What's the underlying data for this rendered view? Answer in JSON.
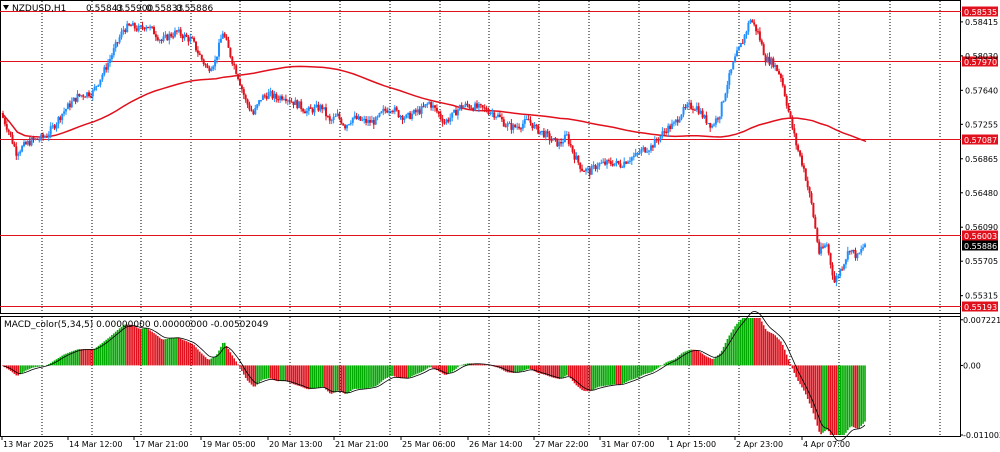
{
  "chart_data": [
    {
      "type": "candlestick",
      "title": "NZDUSD,H1",
      "ohlc_header": {
        "open": "0.55843",
        "high": "0.55900",
        "low": "0.55833",
        "close": "0.55886"
      },
      "ylim": [
        0.5513,
        0.5864
      ],
      "y_ticks": [
        "0.58415",
        "0.58030",
        "0.57640",
        "0.57255",
        "0.56865",
        "0.56480",
        "0.56090",
        "0.55705",
        "0.55315"
      ],
      "x_ticks": [
        "13 Mar 2025",
        "14 Mar 12:00",
        "17 Mar 21:00",
        "19 Mar 05:00",
        "20 Mar 13:00",
        "21 Mar 21:00",
        "25 Mar 06:00",
        "26 Mar 14:00",
        "27 Mar 22:00",
        "31 Mar 07:00",
        "1 Apr 15:00",
        "2 Apr 23:00",
        "4 Apr 07:00"
      ],
      "horizontal_levels": [
        {
          "label": "0.58535",
          "value": 0.58535
        },
        {
          "label": "0.57970",
          "value": 0.5797
        },
        {
          "label": "0.57087",
          "value": 0.57087
        },
        {
          "label": "0.56003",
          "value": 0.56003
        },
        {
          "label": "0.55193",
          "value": 0.55193
        }
      ],
      "current_price": {
        "label": "0.55886",
        "value": 0.55886
      },
      "bull_color": "#1e90ff",
      "bear_color": "#e0101c",
      "ma_color": "#e0101c",
      "level_color": "#e0101c",
      "price_path": [
        0.5738,
        0.5718,
        0.5694,
        0.5701,
        0.5707,
        0.5709,
        0.5713,
        0.5725,
        0.5738,
        0.5748,
        0.5757,
        0.576,
        0.5762,
        0.5778,
        0.5795,
        0.5814,
        0.5833,
        0.5837,
        0.5833,
        0.5838,
        0.583,
        0.582,
        0.5826,
        0.583,
        0.5825,
        0.582,
        0.5803,
        0.5788,
        0.5797,
        0.583,
        0.5804,
        0.578,
        0.5752,
        0.5737,
        0.5755,
        0.576,
        0.5755,
        0.5758,
        0.5752,
        0.5747,
        0.574,
        0.5743,
        0.5745,
        0.5728,
        0.5735,
        0.5724,
        0.5733,
        0.573,
        0.5728,
        0.5729,
        0.574,
        0.5745,
        0.5737,
        0.5733,
        0.5738,
        0.5742,
        0.575,
        0.574,
        0.5728,
        0.5735,
        0.5745,
        0.5747,
        0.5745,
        0.5743,
        0.574,
        0.5735,
        0.5725,
        0.5722,
        0.5725,
        0.573,
        0.572,
        0.5715,
        0.5708,
        0.5703,
        0.5712,
        0.569,
        0.5675,
        0.5672,
        0.568,
        0.5681,
        0.5682,
        0.568,
        0.5686,
        0.569,
        0.5697,
        0.57,
        0.571,
        0.572,
        0.5725,
        0.5739,
        0.5746,
        0.5745,
        0.5732,
        0.5724,
        0.5738,
        0.5772,
        0.58,
        0.582,
        0.5845,
        0.5829,
        0.58,
        0.5795,
        0.578,
        0.574,
        0.5703,
        0.5675,
        0.5635,
        0.558,
        0.559,
        0.5547,
        0.5565,
        0.5585,
        0.5575,
        0.559
      ]
    },
    {
      "type": "histogram",
      "title": "MACD_color(5,34,5) 0.00000000 0.00000000 -0.00502049",
      "ylim": [
        -0.011,
        0.0075
      ],
      "y_ticks": [
        "0.00722110",
        "0.00",
        "-0.01100245"
      ],
      "positive_color": "#00aa00",
      "negative_color": "#e0101c",
      "signal_color": "#000000"
    }
  ]
}
